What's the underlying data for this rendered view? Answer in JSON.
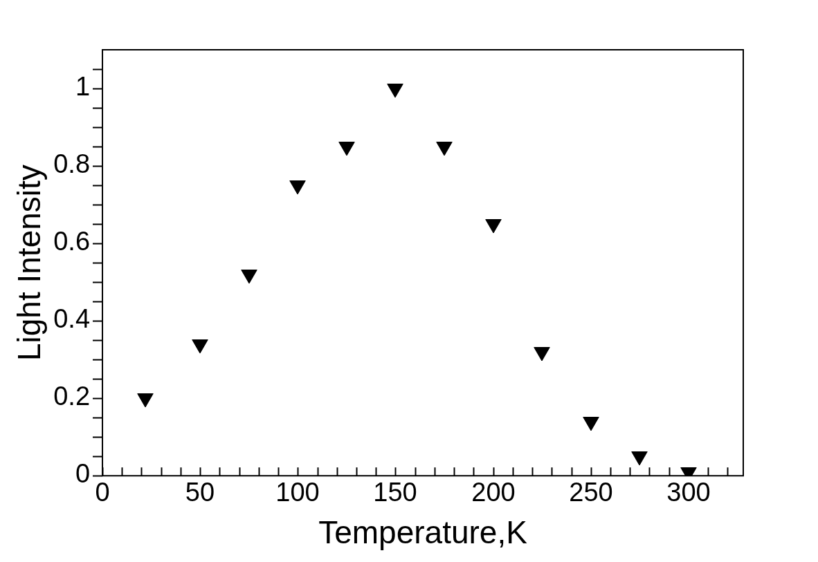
{
  "chart_data": {
    "type": "scatter",
    "xlabel": "Temperature,K",
    "ylabel": "Light Intensity",
    "marker": "triangle",
    "color": "#000000",
    "x": [
      22,
      50,
      75,
      100,
      125,
      150,
      175,
      200,
      225,
      250,
      275,
      300
    ],
    "values": [
      0.2,
      0.34,
      0.52,
      0.75,
      0.85,
      1.0,
      0.85,
      0.65,
      0.32,
      0.14,
      0.05,
      0.01
    ],
    "xlim": [
      0,
      328
    ],
    "ylim": [
      0,
      1.1
    ],
    "xticks": [
      0,
      {
        "value": 10,
        "label": null
      },
      {
        "value": 20,
        "label": null
      },
      {
        "value": 30,
        "label": null
      },
      {
        "value": 40,
        "label": null
      },
      50,
      {
        "value": 60,
        "label": null
      },
      {
        "value": 70,
        "label": null
      },
      {
        "value": 80,
        "label": null
      },
      {
        "value": 90,
        "label": null
      },
      100,
      {
        "value": 110,
        "label": null
      },
      {
        "value": 120,
        "label": null
      },
      {
        "value": 130,
        "label": null
      },
      {
        "value": 140,
        "label": null
      },
      150,
      {
        "value": 160,
        "label": null
      },
      {
        "value": 170,
        "label": null
      },
      {
        "value": 180,
        "label": null
      },
      {
        "value": 190,
        "label": null
      },
      200,
      {
        "value": 210,
        "label": null
      },
      {
        "value": 220,
        "label": null
      },
      {
        "value": 230,
        "label": null
      },
      {
        "value": 240,
        "label": null
      },
      250,
      {
        "value": 260,
        "label": null
      },
      {
        "value": 270,
        "label": null
      },
      {
        "value": 280,
        "label": null
      },
      {
        "value": 290,
        "label": null
      },
      300,
      {
        "value": 310,
        "label": null
      },
      {
        "value": 320,
        "label": null
      }
    ],
    "yticks": [
      0,
      {
        "value": 0.05,
        "label": null
      },
      {
        "value": 0.1,
        "label": null
      },
      {
        "value": 0.15,
        "label": null
      },
      0.2,
      {
        "value": 0.25,
        "label": null
      },
      {
        "value": 0.3,
        "label": null
      },
      {
        "value": 0.35,
        "label": null
      },
      0.4,
      {
        "value": 0.45,
        "label": null
      },
      {
        "value": 0.5,
        "label": null
      },
      {
        "value": 0.55,
        "label": null
      },
      0.6,
      {
        "value": 0.65,
        "label": null
      },
      {
        "value": 0.7,
        "label": null
      },
      {
        "value": 0.75,
        "label": null
      },
      0.8,
      {
        "value": 0.85,
        "label": null
      },
      {
        "value": 0.9,
        "label": null
      },
      {
        "value": 0.95,
        "label": null
      },
      1,
      {
        "value": 1.05,
        "label": null
      }
    ]
  }
}
